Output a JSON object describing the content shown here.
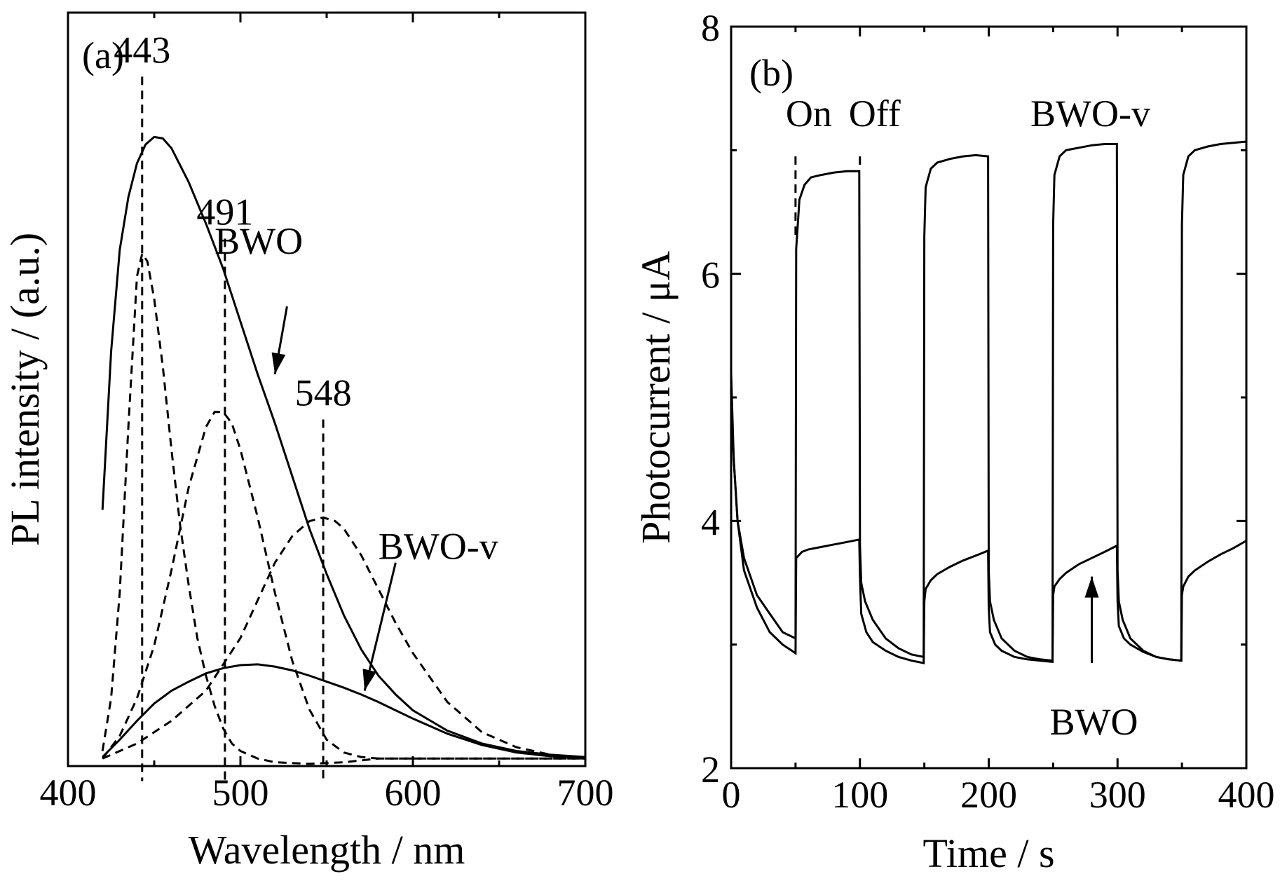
{
  "chart_data": [
    {
      "panel": "(a)",
      "type": "line",
      "xlabel": "Wavelength / nm",
      "ylabel": "PL intensity / (a.u.)",
      "xlim": [
        400,
        700
      ],
      "ylim": [
        0,
        1
      ],
      "xticks": [
        400,
        500,
        600,
        700
      ],
      "yticks_shown": false,
      "peak_markers": [
        {
          "label": "443",
          "x": 443,
          "y_top": 0.915
        },
        {
          "label": "491",
          "x": 491,
          "y_top": 0.7
        },
        {
          "label": "548",
          "x": 548,
          "y_top": 0.46
        }
      ],
      "curve_labels": [
        {
          "text": "BWO",
          "text_at": [
            485,
            0.68
          ],
          "arrow_from": [
            527,
            0.61
          ],
          "arrow_to": [
            520,
            0.52
          ]
        },
        {
          "text": "BWO-v",
          "text_at": [
            580,
            0.275
          ],
          "arrow_from": [
            590,
            0.27
          ],
          "arrow_to": [
            572,
            0.1
          ]
        }
      ],
      "series": [
        {
          "name": "BWO",
          "style": "solid",
          "x": [
            420,
            425,
            430,
            435,
            440,
            445,
            450,
            455,
            460,
            470,
            480,
            490,
            500,
            510,
            520,
            530,
            540,
            550,
            560,
            570,
            580,
            590,
            600,
            620,
            640,
            660,
            680,
            700
          ],
          "y": [
            0.34,
            0.55,
            0.685,
            0.755,
            0.8,
            0.825,
            0.835,
            0.833,
            0.82,
            0.775,
            0.72,
            0.66,
            0.59,
            0.52,
            0.455,
            0.385,
            0.315,
            0.255,
            0.2,
            0.155,
            0.12,
            0.095,
            0.074,
            0.047,
            0.03,
            0.02,
            0.015,
            0.012
          ]
        },
        {
          "name": "BWO-v",
          "style": "solid",
          "x": [
            420,
            430,
            440,
            450,
            460,
            470,
            480,
            490,
            500,
            510,
            520,
            530,
            540,
            550,
            560,
            570,
            580,
            590,
            600,
            620,
            640,
            660,
            680,
            700
          ],
          "y": [
            0.012,
            0.035,
            0.06,
            0.083,
            0.1,
            0.112,
            0.123,
            0.13,
            0.134,
            0.135,
            0.132,
            0.127,
            0.12,
            0.112,
            0.104,
            0.095,
            0.085,
            0.074,
            0.063,
            0.043,
            0.028,
            0.018,
            0.013,
            0.01
          ]
        },
        {
          "name": "",
          "style": "dashed",
          "x": [
            420,
            425,
            430,
            435,
            440,
            443,
            446,
            450,
            455,
            460,
            465,
            470,
            475,
            480,
            485,
            490,
            495,
            500,
            510,
            520,
            540,
            560,
            580,
            600,
            650,
            700
          ],
          "y": [
            0.02,
            0.09,
            0.23,
            0.45,
            0.65,
            0.68,
            0.67,
            0.62,
            0.53,
            0.42,
            0.32,
            0.24,
            0.17,
            0.12,
            0.08,
            0.05,
            0.03,
            0.02,
            0.01,
            0.005,
            0.003,
            0.005,
            0.01,
            0.01,
            0.01,
            0.01
          ]
        },
        {
          "name": "",
          "style": "dashed",
          "x": [
            420,
            430,
            440,
            450,
            460,
            470,
            480,
            485,
            490,
            495,
            500,
            510,
            520,
            530,
            540,
            550,
            560,
            570,
            580,
            600,
            650,
            700
          ],
          "y": [
            0.01,
            0.04,
            0.09,
            0.16,
            0.26,
            0.37,
            0.45,
            0.47,
            0.47,
            0.455,
            0.42,
            0.33,
            0.23,
            0.14,
            0.075,
            0.035,
            0.018,
            0.012,
            0.01,
            0.01,
            0.01,
            0.01
          ]
        },
        {
          "name": "",
          "style": "dashed",
          "x": [
            420,
            440,
            460,
            480,
            500,
            510,
            520,
            530,
            540,
            548,
            555,
            560,
            570,
            580,
            590,
            600,
            620,
            640,
            660,
            680,
            700
          ],
          "y": [
            0.01,
            0.03,
            0.06,
            0.1,
            0.17,
            0.22,
            0.27,
            0.305,
            0.325,
            0.33,
            0.325,
            0.315,
            0.28,
            0.235,
            0.19,
            0.15,
            0.085,
            0.045,
            0.025,
            0.015,
            0.01
          ]
        }
      ]
    },
    {
      "panel": "(b)",
      "type": "line",
      "xlabel": "Time / s",
      "ylabel": "Photocurrent / μA",
      "xlim": [
        0,
        400
      ],
      "ylim": [
        2,
        8
      ],
      "xticks": [
        0,
        100,
        200,
        300,
        400
      ],
      "yticks": [
        2,
        4,
        6,
        8
      ],
      "annotations": [
        "On",
        "Off"
      ],
      "on_off_times": [
        50,
        100
      ],
      "curve_labels": [
        {
          "text": "BWO-v",
          "position": "upper right, above plateaus"
        },
        {
          "text": "BWO",
          "text_at": [
            280,
            2.5
          ],
          "arrow_from": [
            280,
            2.85
          ],
          "arrow_to": [
            280,
            3.55
          ]
        }
      ],
      "series": [
        {
          "name": "BWO-v",
          "style": "solid",
          "x": [
            0,
            2,
            5,
            10,
            20,
            30,
            40,
            50,
            50.5,
            53,
            57,
            62,
            70,
            80,
            90,
            99.5,
            100,
            101,
            104,
            110,
            120,
            130,
            140,
            149.5,
            150,
            151,
            155,
            160,
            170,
            180,
            190,
            199.5,
            200,
            201,
            204,
            210,
            220,
            230,
            240,
            249.5,
            250,
            251,
            255,
            260,
            270,
            280,
            290,
            299.5,
            300,
            301,
            304,
            310,
            320,
            330,
            340,
            349.5,
            350,
            351,
            355,
            360,
            370,
            380,
            390,
            400
          ],
          "y": [
            5.2,
            4.5,
            4.0,
            3.7,
            3.4,
            3.25,
            3.1,
            3.05,
            6.2,
            6.6,
            6.72,
            6.78,
            6.8,
            6.82,
            6.83,
            6.83,
            3.8,
            3.5,
            3.35,
            3.2,
            3.05,
            2.97,
            2.92,
            2.9,
            6.3,
            6.7,
            6.85,
            6.9,
            6.93,
            6.95,
            6.96,
            6.95,
            3.6,
            3.35,
            3.2,
            3.05,
            2.95,
            2.9,
            2.88,
            2.87,
            6.4,
            6.8,
            6.95,
            7.0,
            7.02,
            7.04,
            7.05,
            7.05,
            3.6,
            3.35,
            3.2,
            3.05,
            2.95,
            2.9,
            2.88,
            2.87,
            6.4,
            6.8,
            6.95,
            7.0,
            7.03,
            7.05,
            7.06,
            7.07
          ]
        },
        {
          "name": "BWO",
          "style": "solid",
          "x": [
            0,
            2,
            5,
            10,
            20,
            30,
            40,
            50,
            50.5,
            55,
            60,
            70,
            80,
            90,
            99.5,
            100,
            101,
            105,
            110,
            120,
            130,
            140,
            149.5,
            150,
            151,
            155,
            160,
            170,
            180,
            190,
            199.5,
            200,
            201,
            205,
            210,
            220,
            230,
            240,
            249.5,
            250,
            251,
            255,
            260,
            270,
            280,
            290,
            299.5,
            300,
            301,
            305,
            310,
            320,
            330,
            340,
            349.5,
            350,
            351,
            355,
            360,
            370,
            380,
            390,
            400
          ],
          "y": [
            5.0,
            4.5,
            4.0,
            3.6,
            3.3,
            3.1,
            3.0,
            2.93,
            3.7,
            3.75,
            3.77,
            3.79,
            3.81,
            3.83,
            3.85,
            3.55,
            3.25,
            3.1,
            3.02,
            2.95,
            2.9,
            2.87,
            2.85,
            3.35,
            3.45,
            3.52,
            3.57,
            3.63,
            3.68,
            3.72,
            3.76,
            3.3,
            3.1,
            3.0,
            2.95,
            2.9,
            2.88,
            2.87,
            2.86,
            3.4,
            3.47,
            3.53,
            3.58,
            3.65,
            3.7,
            3.75,
            3.8,
            3.35,
            3.15,
            3.05,
            3.0,
            2.94,
            2.9,
            2.88,
            2.87,
            3.4,
            3.47,
            3.55,
            3.6,
            3.67,
            3.73,
            3.78,
            3.84
          ]
        }
      ]
    }
  ]
}
